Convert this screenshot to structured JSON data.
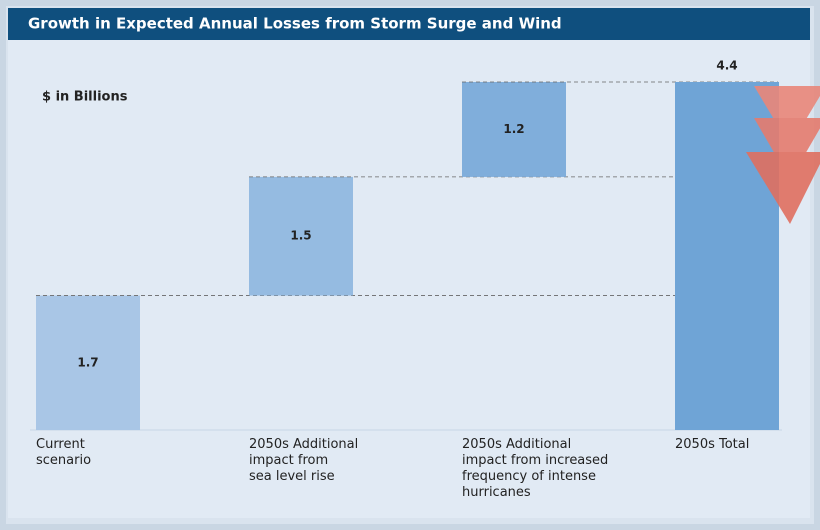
{
  "chart_data": {
    "type": "waterfall",
    "title": "Growth in Expected Annual Losses from Storm Surge and Wind",
    "y_label": "$ in Billions",
    "categories": [
      [
        "Current",
        "scenario"
      ],
      [
        "2050s Additional",
        "impact from",
        "sea level rise"
      ],
      [
        "2050s Additional",
        "impact from increased",
        "frequency of intense",
        "hurricanes"
      ],
      [
        "2050s Total"
      ]
    ],
    "values": [
      1.7,
      1.5,
      1.2,
      4.4
    ],
    "is_total": [
      false,
      false,
      false,
      true
    ],
    "colors": [
      "#a9c6e6",
      "#95bbe1",
      "#80aedb",
      "#6fa4d6"
    ],
    "ylim": [
      0,
      4.4
    ]
  }
}
